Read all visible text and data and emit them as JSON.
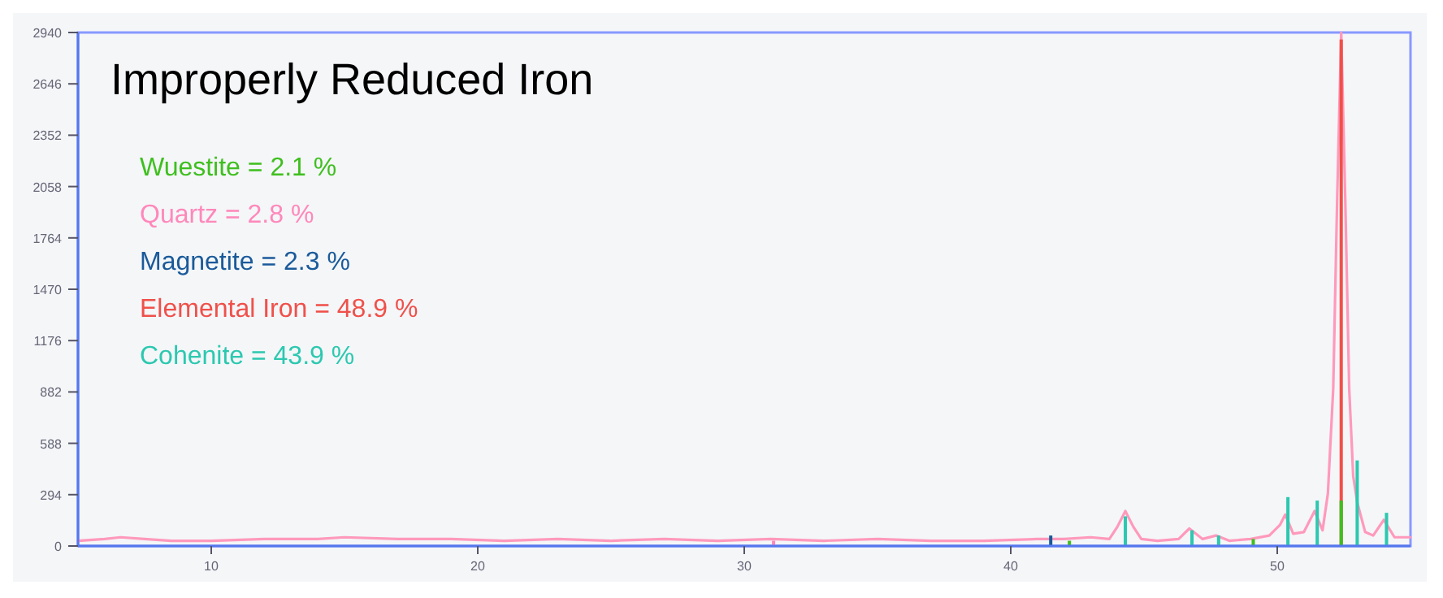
{
  "chart_data": {
    "type": "line",
    "title": "Improperly Reduced Iron",
    "xlim": [
      5,
      55
    ],
    "xticks": [
      10,
      20,
      30,
      40,
      50
    ],
    "ylim": [
      0,
      2940
    ],
    "yticks": [
      0,
      294,
      588,
      882,
      1176,
      1470,
      1764,
      2058,
      2352,
      2646,
      2940
    ],
    "grid": false,
    "legend": "top left",
    "series": [
      {
        "color": "#ff99bb",
        "x": [
          5,
          6,
          6.6,
          7.5,
          8.5,
          10,
          12,
          14,
          15,
          17,
          19,
          21,
          23,
          25,
          27,
          29,
          31,
          33,
          35,
          37,
          39,
          41,
          42,
          43,
          43.7,
          44,
          44.3,
          44.6,
          44.9,
          45.5,
          46.3,
          46.7,
          47.2,
          47.7,
          48.2,
          49,
          49.7,
          50.1,
          50.3,
          50.6,
          51,
          51.4,
          51.7,
          51.9,
          52.1,
          52.25,
          52.4,
          52.55,
          52.7,
          52.85,
          53,
          53.3,
          53.6,
          54,
          54.4,
          55
        ],
        "values": [
          30,
          40,
          50,
          40,
          30,
          30,
          40,
          40,
          50,
          40,
          40,
          30,
          40,
          30,
          40,
          30,
          40,
          30,
          40,
          30,
          30,
          40,
          40,
          50,
          40,
          110,
          200,
          110,
          40,
          30,
          40,
          100,
          40,
          60,
          30,
          40,
          60,
          120,
          180,
          70,
          80,
          200,
          90,
          300,
          900,
          2000,
          2940,
          2000,
          900,
          400,
          250,
          80,
          60,
          150,
          50,
          50
        ]
      },
      {
        "type": "bar",
        "name": "Wuestite = 2.1 %",
        "color": "#3fbf1f",
        "x": [
          42.2,
          49.1,
          52.4
        ],
        "values": [
          30,
          40,
          260
        ]
      },
      {
        "type": "bar",
        "name": "Quartz = 2.8 %",
        "color": "#ff88bb",
        "x": [
          31.1
        ],
        "values": [
          30
        ]
      },
      {
        "type": "bar",
        "name": "Magnetite = 2.3 %",
        "color": "#1a5a9a",
        "x": [
          41.5
        ],
        "values": [
          60
        ]
      },
      {
        "type": "bar",
        "name": "Elemental Iron = 48.9 %",
        "color": "#f0504a",
        "x": [
          52.4
        ],
        "values": [
          2900
        ]
      },
      {
        "type": "bar",
        "name": "Cohenite = 43.9 %",
        "color": "#2cc8b0",
        "x": [
          44.3,
          46.8,
          47.8,
          50.4,
          51.5,
          53,
          54.1
        ],
        "values": [
          170,
          90,
          60,
          280,
          260,
          490,
          190
        ]
      }
    ]
  }
}
